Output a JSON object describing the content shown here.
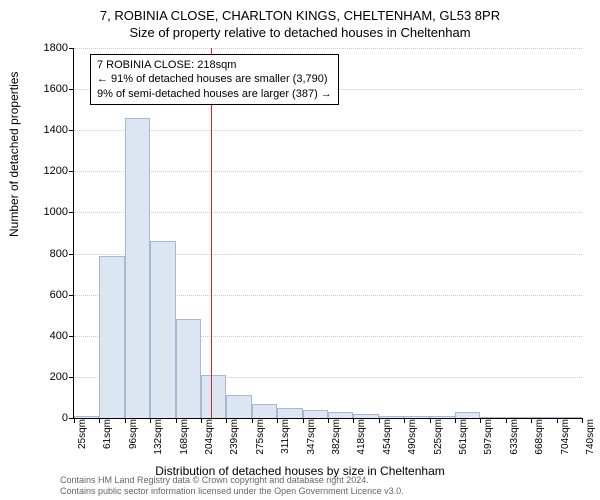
{
  "title_main": "7, ROBINIA CLOSE, CHARLTON KINGS, CHELTENHAM, GL53 8PR",
  "title_sub": "Size of property relative to detached houses in Cheltenham",
  "ylabel": "Number of detached properties",
  "xlabel": "Distribution of detached houses by size in Cheltenham",
  "chart": {
    "type": "histogram",
    "ylim": [
      0,
      1800
    ],
    "ytick_step": 200,
    "yticks": [
      0,
      200,
      400,
      600,
      800,
      1000,
      1200,
      1400,
      1600,
      1800
    ],
    "xtick_labels": [
      "25sqm",
      "61sqm",
      "96sqm",
      "132sqm",
      "168sqm",
      "204sqm",
      "239sqm",
      "275sqm",
      "311sqm",
      "347sqm",
      "382sqm",
      "418sqm",
      "454sqm",
      "490sqm",
      "525sqm",
      "561sqm",
      "597sqm",
      "633sqm",
      "668sqm",
      "704sqm",
      "740sqm"
    ],
    "bar_values": [
      10,
      790,
      1460,
      860,
      480,
      210,
      110,
      70,
      50,
      40,
      30,
      20,
      10,
      10,
      10,
      30,
      5,
      5,
      5,
      5
    ],
    "bar_color": "#dce6f2",
    "bar_border": "#a8b8d0",
    "grid_color": "#cccccc",
    "ref_value_sqm": 218,
    "ref_line_color": "#d62728",
    "background": "#ffffff"
  },
  "annotation": {
    "line1": "7 ROBINIA CLOSE: 218sqm",
    "line2": "← 91% of detached houses are smaller (3,790)",
    "line3": "9% of semi-detached houses are larger (387) →"
  },
  "footer": {
    "line1": "Contains HM Land Registry data © Crown copyright and database right 2024.",
    "line2": "Contains public sector information licensed under the Open Government Licence v3.0."
  }
}
